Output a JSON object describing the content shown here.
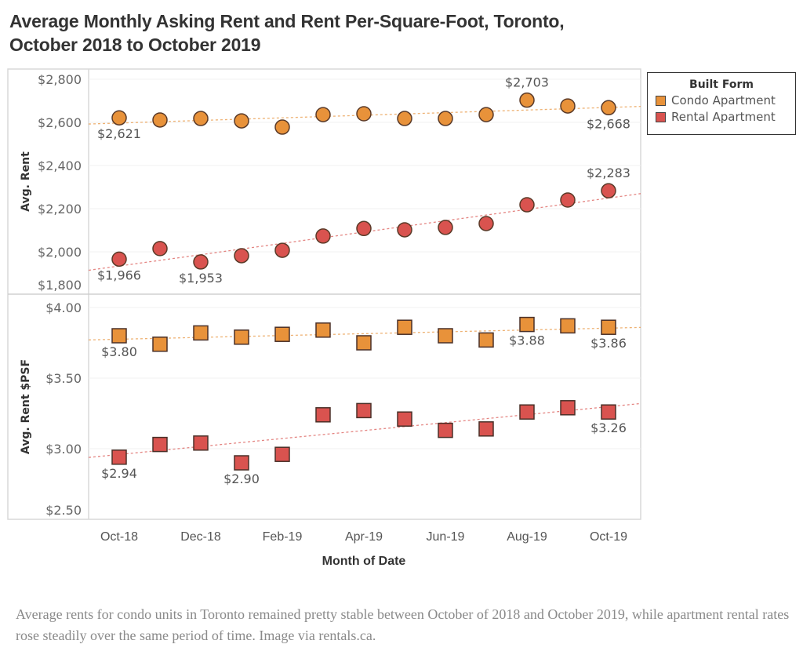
{
  "title_line1": "Average Monthly Asking Rent and Rent Per-Square-Foot, Toronto,",
  "title_line2": "October 2018 to October 2019",
  "caption": "Average rents for condo units in Toronto remained pretty stable between October of 2018 and October 2019, while apartment rental rates rose steadily over the same period of time. Image via rentals.ca.",
  "legend": {
    "title": "Built Form",
    "items": [
      {
        "label": "Condo Apartment",
        "color": "#E8923A"
      },
      {
        "label": "Rental Apartment",
        "color": "#D9534F"
      }
    ]
  },
  "chart_data": [
    {
      "type": "scatter",
      "panel": "top",
      "title": "Average Monthly Asking Rent and Rent Per-Square-Foot, Toronto, October 2018 to October 2019",
      "xlabel": "Month of Date",
      "ylabel": "Avg. Rent",
      "marker": "circle",
      "x": [
        "Oct-18",
        "Nov-18",
        "Dec-18",
        "Jan-19",
        "Feb-19",
        "Mar-19",
        "Apr-19",
        "May-19",
        "Jun-19",
        "Jul-19",
        "Aug-19",
        "Sep-19",
        "Oct-19"
      ],
      "x_tick_labels": [
        "Oct-18",
        "Dec-18",
        "Feb-19",
        "Apr-19",
        "Jun-19",
        "Aug-19",
        "Oct-19"
      ],
      "y_ticks": [
        1800,
        2000,
        2200,
        2400,
        2600,
        2800
      ],
      "y_tick_labels": [
        "$1,800",
        "$2,000",
        "$2,200",
        "$2,400",
        "$2,600",
        "$2,800"
      ],
      "ylim": [
        1800,
        2840
      ],
      "grid": true,
      "trend_lines": true,
      "legend": "top-right",
      "series": [
        {
          "name": "Condo Apartment",
          "color": "#E8923A",
          "values": [
            2621,
            2611,
            2618,
            2607,
            2578,
            2636,
            2640,
            2618,
            2618,
            2636,
            2703,
            2676,
            2668
          ],
          "labels": [
            {
              "index": 0,
              "text": "$2,621",
              "pos": "below"
            },
            {
              "index": 10,
              "text": "$2,703",
              "pos": "above"
            },
            {
              "index": 12,
              "text": "$2,668",
              "pos": "below"
            }
          ]
        },
        {
          "name": "Rental Apartment",
          "color": "#D9534F",
          "values": [
            1966,
            2015,
            1953,
            1982,
            2007,
            2073,
            2108,
            2102,
            2113,
            2131,
            2218,
            2240,
            2283
          ],
          "labels": [
            {
              "index": 0,
              "text": "$1,966",
              "pos": "below"
            },
            {
              "index": 2,
              "text": "$1,953",
              "pos": "below"
            },
            {
              "index": 12,
              "text": "$2,283",
              "pos": "above"
            }
          ]
        }
      ]
    },
    {
      "type": "scatter",
      "panel": "bottom",
      "xlabel": "Month of Date",
      "ylabel": "Avg. Rent $PSF",
      "marker": "square",
      "x": [
        "Oct-18",
        "Nov-18",
        "Dec-18",
        "Jan-19",
        "Feb-19",
        "Mar-19",
        "Apr-19",
        "May-19",
        "Jun-19",
        "Jul-19",
        "Aug-19",
        "Sep-19",
        "Oct-19"
      ],
      "x_tick_labels": [
        "Oct-18",
        "Dec-18",
        "Feb-19",
        "Apr-19",
        "Jun-19",
        "Aug-19",
        "Oct-19"
      ],
      "y_ticks": [
        2.5,
        3.0,
        3.5,
        4.0
      ],
      "y_tick_labels": [
        "$2.50",
        "$3.00",
        "$3.50",
        "$4.00"
      ],
      "ylim": [
        2.44,
        4.03
      ],
      "grid": true,
      "trend_lines": true,
      "series": [
        {
          "name": "Condo Apartment",
          "color": "#E8923A",
          "values": [
            3.8,
            3.74,
            3.82,
            3.79,
            3.81,
            3.84,
            3.75,
            3.86,
            3.8,
            3.77,
            3.88,
            3.87,
            3.86
          ],
          "labels": [
            {
              "index": 0,
              "text": "$3.80",
              "pos": "below"
            },
            {
              "index": 10,
              "text": "$3.88",
              "pos": "below"
            },
            {
              "index": 12,
              "text": "$3.86",
              "pos": "below"
            }
          ]
        },
        {
          "name": "Rental Apartment",
          "color": "#D9534F",
          "values": [
            2.94,
            3.03,
            3.04,
            2.9,
            2.96,
            3.24,
            3.27,
            3.21,
            3.13,
            3.14,
            3.26,
            3.29,
            3.26
          ],
          "labels": [
            {
              "index": 0,
              "text": "$2.94",
              "pos": "below"
            },
            {
              "index": 3,
              "text": "$2.90",
              "pos": "below"
            },
            {
              "index": 12,
              "text": "$3.26",
              "pos": "below"
            }
          ]
        }
      ]
    }
  ]
}
